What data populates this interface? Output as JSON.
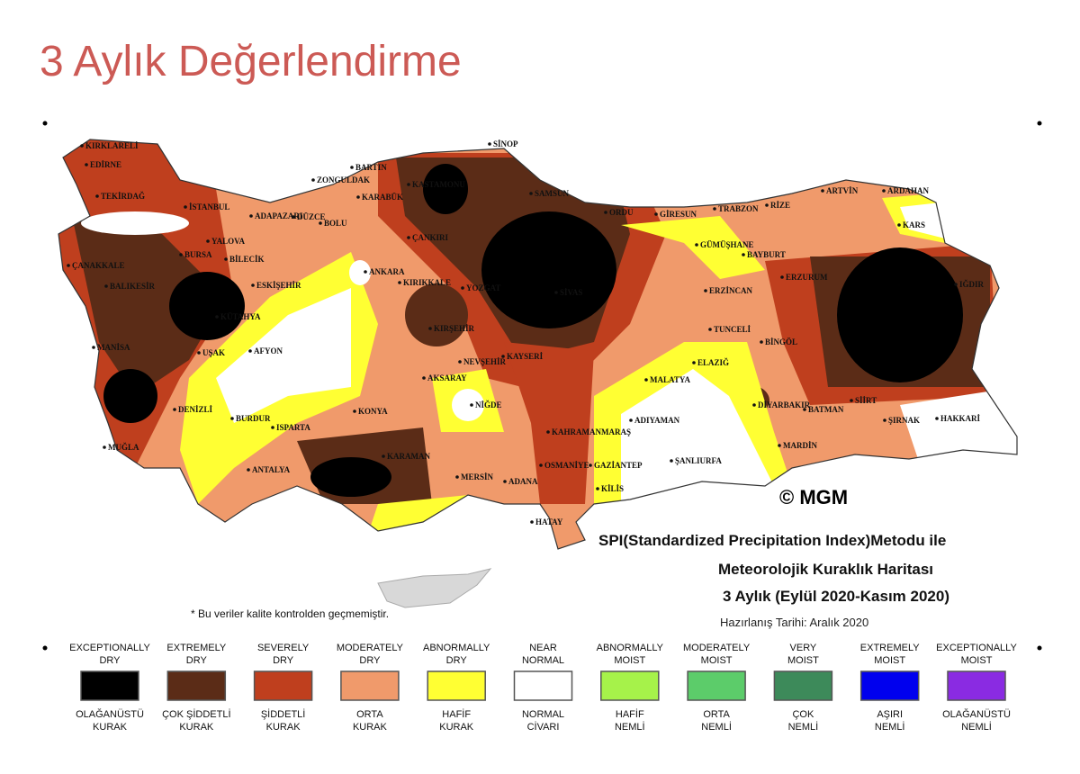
{
  "header": {
    "title": "3 Aylık Değerlendirme"
  },
  "map": {
    "cities": [
      "KIRKLARELİ",
      "EDİRNE",
      "TEKİRDAĞ",
      "İSTANBUL",
      "BARTIN",
      "ZONGULDAK",
      "KARABÜK",
      "KASTAMONU",
      "SİNOP",
      "SAMSUN",
      "ORDU",
      "GİRESUN",
      "TRABZON",
      "RİZE",
      "ARTVİN",
      "ARDAHAN",
      "KARS",
      "ADAPAZARI",
      "DÜZCE",
      "BOLU",
      "YALOVA",
      "BURSA",
      "BİLECİK",
      "ÇANAKKALE",
      "BALIKESİR",
      "ESKİŞEHİR",
      "ANKARA",
      "ÇANKIRI",
      "KIRIKKALE",
      "YOZGAT",
      "SİVAS",
      "GÜMÜŞHANE",
      "BAYBURT",
      "ERZURUM",
      "ERZİNCAN",
      "IĞDIR",
      "KÜTAHYA",
      "TUNCELİ",
      "BİNGÖL",
      "KIRŞEHİR",
      "NEVŞEHİR",
      "KAYSERİ",
      "MANİSA",
      "UŞAK",
      "AFYON",
      "ELAZIĞ",
      "AKSARAY",
      "MALATYA",
      "DENİZLİ",
      "NİĞDE",
      "KONYA",
      "BURDUR",
      "ISPARTA",
      "DİYARBAKIR",
      "BATMAN",
      "SİİRT",
      "ŞIRNAK",
      "HAKKARİ",
      "MUĞLA",
      "KAHRAMANMARAŞ",
      "ADIYAMAN",
      "KARAMAN",
      "MARDİN",
      "ANTALYA",
      "OSMANİYE",
      "GAZİANTEP",
      "ŞANLIURFA",
      "MERSİN",
      "ADANA",
      "KİLİS",
      "HATAY"
    ],
    "copyright": "© MGM",
    "caption": [
      "SPI(Standardized Precipitation Index)Metodu ile",
      "Meteorolojik Kuraklık Haritası",
      "3 Aylık (Eylül 2020-Kasım 2020)"
    ],
    "prepared": "Hazırlanış Tarihi: Aralık 2020",
    "note": "* Bu veriler kalite kontrolden geçmemiştir."
  },
  "legend": {
    "items": [
      {
        "top": [
          "EXCEPTIONALLY",
          "DRY"
        ],
        "bottom": [
          "OLAĞANÜSTÜ",
          "KURAK"
        ],
        "color": "#000000"
      },
      {
        "top": [
          "EXTREMELY",
          "DRY"
        ],
        "bottom": [
          "ÇOK ŞİDDETLİ",
          "KURAK"
        ],
        "color": "#5b2c17"
      },
      {
        "top": [
          "SEVERELY",
          "DRY"
        ],
        "bottom": [
          "ŞİDDETLİ",
          "KURAK"
        ],
        "color": "#bf3f1e"
      },
      {
        "top": [
          "MODERATELY",
          "DRY"
        ],
        "bottom": [
          "ORTA",
          "KURAK"
        ],
        "color": "#f09a6b"
      },
      {
        "top": [
          "ABNORMALLY",
          "DRY"
        ],
        "bottom": [
          "HAFİF",
          "KURAK"
        ],
        "color": "#ffff33"
      },
      {
        "top": [
          "NEAR",
          "NORMAL"
        ],
        "bottom": [
          "NORMAL",
          "CİVARI"
        ],
        "color": "#ffffff"
      },
      {
        "top": [
          "ABNORMALLY",
          "MOIST"
        ],
        "bottom": [
          "HAFİF",
          "NEMLİ"
        ],
        "color": "#a6f24a"
      },
      {
        "top": [
          "MODERATELY",
          "MOIST"
        ],
        "bottom": [
          "ORTA",
          "NEMLİ"
        ],
        "color": "#5ccc6a"
      },
      {
        "top": [
          "VERY",
          "MOIST"
        ],
        "bottom": [
          "ÇOK",
          "NEMLİ"
        ],
        "color": "#3d8a5a"
      },
      {
        "top": [
          "EXTREMELY",
          "MOIST"
        ],
        "bottom": [
          "AŞIRI",
          "NEMLİ"
        ],
        "color": "#0000ee"
      },
      {
        "top": [
          "EXCEPTIONALLY",
          "MOIST"
        ],
        "bottom": [
          "OLAĞANÜSTÜ",
          "NEMLİ"
        ],
        "color": "#8a2be2"
      }
    ]
  }
}
